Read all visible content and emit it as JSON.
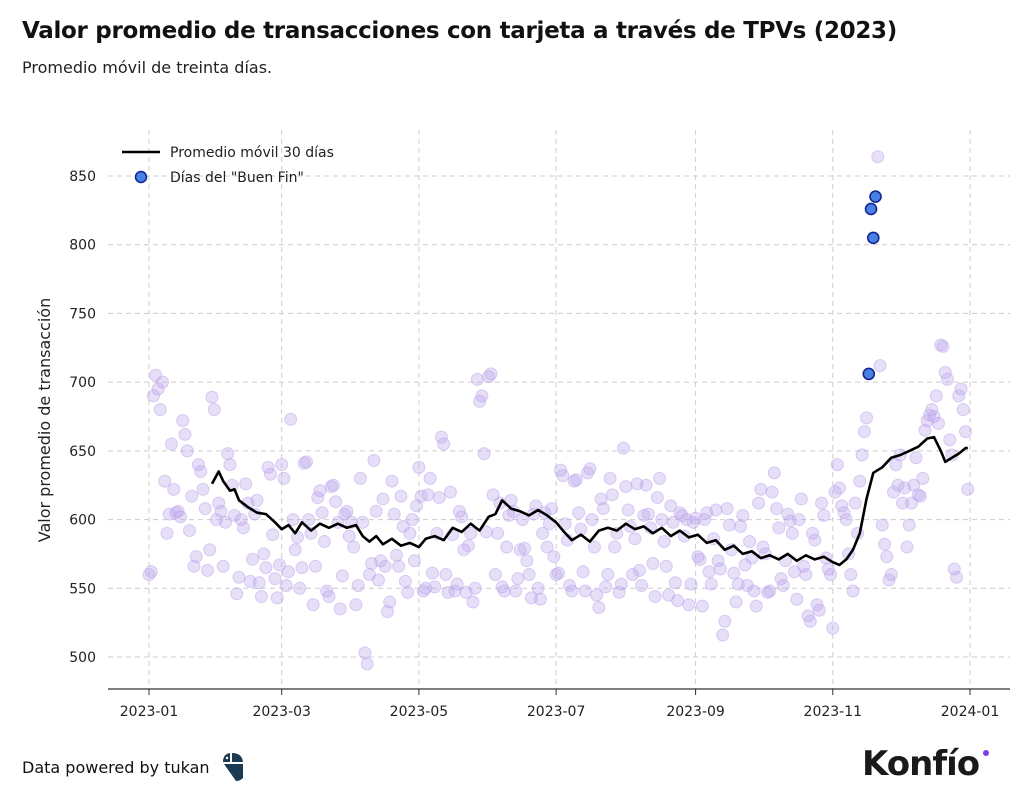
{
  "title": "Valor promedio de transacciones con tarjeta a través de TPVs (2023)",
  "subtitle": "Promedio móvil de treinta días.",
  "footer": {
    "credit": "Data powered by tukan",
    "logo_tukan": "tukan",
    "logo_konfio": "Konfío"
  },
  "colors": {
    "line": "#000000",
    "scatter": "#b9a3ec",
    "buen_fin_fill": "#4a7fe6",
    "buen_fin_edge": "#10238f",
    "konfio_dot": "#7b3fe4",
    "tukan": "#1c3a52"
  },
  "chart_data": {
    "type": "line+scatter",
    "ylabel": "Valor promedio de transacción",
    "xlabel": "",
    "ylim": [
      480,
      880
    ],
    "xlim": [
      "2022-12-10",
      "2024-01-20"
    ],
    "yticks": [
      500,
      550,
      600,
      650,
      700,
      750,
      800,
      850
    ],
    "xticks": [
      "2023-01",
      "2023-03",
      "2023-05",
      "2023-07",
      "2023-09",
      "2023-11",
      "2024-01"
    ],
    "grid": true,
    "legend": {
      "placement": "top-left",
      "entries": [
        "Promedio móvil 30 días",
        "Días del \"Buen Fin\""
      ]
    },
    "daily_values_by_month": {
      "2023-01": [
        560,
        562,
        690,
        705,
        695,
        680,
        700,
        628,
        590,
        604,
        655,
        622,
        605,
        606,
        602,
        672,
        662,
        650,
        592,
        617,
        566,
        573,
        640,
        635,
        622,
        608,
        563,
        578,
        689,
        680,
        600
      ],
      "2023-02": [
        612,
        606,
        566,
        598,
        648,
        640,
        625,
        603,
        546,
        558,
        600,
        594,
        626,
        612,
        555,
        571,
        604,
        614,
        554,
        544,
        575,
        565,
        638,
        633,
        589,
        557,
        543,
        567
      ],
      "2023-03": [
        640,
        630,
        552,
        562,
        673,
        600,
        578,
        587,
        550,
        565,
        641,
        642,
        600,
        590,
        538,
        566,
        616,
        621,
        605,
        584,
        548,
        544,
        624,
        625,
        613,
        598,
        535,
        559,
        604,
        606,
        588
      ],
      "2023-04": [
        598,
        580,
        538,
        552,
        630,
        598,
        503,
        495,
        560,
        568,
        643,
        606,
        556,
        570,
        615,
        566,
        533,
        540,
        628,
        604,
        574,
        566,
        617,
        595,
        555,
        547,
        590,
        600,
        570,
        610
      ],
      "2023-05": [
        638,
        617,
        548,
        550,
        618,
        630,
        561,
        551,
        590,
        616,
        660,
        655,
        560,
        547,
        620,
        589,
        548,
        553,
        606,
        602,
        578,
        547,
        581,
        590,
        540,
        550,
        702,
        686,
        690,
        648,
        591
      ],
      "2023-06": [
        704,
        706,
        618,
        560,
        590,
        612,
        551,
        548,
        580,
        603,
        614,
        606,
        548,
        557,
        578,
        600,
        579,
        570,
        560,
        543,
        604,
        610,
        550,
        542,
        590,
        605,
        580,
        597,
        608,
        573
      ],
      "2023-07": [
        560,
        561,
        636,
        632,
        597,
        585,
        552,
        548,
        628,
        629,
        605,
        593,
        562,
        548,
        634,
        637,
        600,
        580,
        545,
        536,
        615,
        608,
        551,
        560,
        630,
        618,
        580,
        590,
        547,
        553,
        652
      ],
      "2023-08": [
        624,
        607,
        595,
        560,
        586,
        626,
        563,
        552,
        603,
        625,
        604,
        594,
        568,
        544,
        616,
        630,
        600,
        584,
        566,
        545,
        610,
        598,
        554,
        541,
        605,
        603,
        588,
        600,
        538,
        553,
        598
      ],
      "2023-09": [
        601,
        573,
        571,
        537,
        600,
        605,
        562,
        553,
        586,
        607,
        570,
        564,
        516,
        526,
        608,
        596,
        578,
        561,
        540,
        553,
        595,
        603,
        567,
        552,
        584,
        572,
        548,
        537,
        612,
        622
      ],
      "2023-10": [
        580,
        575,
        547,
        548,
        620,
        634,
        608,
        594,
        557,
        552,
        570,
        604,
        599,
        590,
        562,
        542,
        600,
        615,
        566,
        560,
        530,
        526,
        590,
        585,
        538,
        534,
        612,
        603,
        572,
        564,
        560
      ],
      "2023-11": [
        521,
        620,
        640,
        623,
        610,
        605,
        600,
        575,
        560,
        548,
        612,
        590,
        628,
        647,
        664,
        674,
        706,
        826,
        805,
        835,
        864,
        712,
        596,
        582,
        573,
        556,
        560,
        620,
        640,
        625
      ],
      "2023-12": [
        647,
        612,
        623,
        580,
        596,
        612,
        625,
        645,
        618,
        617,
        630,
        665,
        672,
        676,
        680,
        675,
        690,
        670,
        727,
        726,
        707,
        702,
        658,
        647,
        564,
        558,
        690,
        695,
        680,
        664,
        622
      ]
    },
    "series": [
      {
        "name": "Promedio móvil 30 días",
        "type": "line",
        "points": [
          [
            "2023-01-29",
            626
          ],
          [
            "2023-02-01",
            635
          ],
          [
            "2023-02-03",
            628
          ],
          [
            "2023-02-06",
            621
          ],
          [
            "2023-02-08",
            622
          ],
          [
            "2023-02-10",
            614
          ],
          [
            "2023-02-14",
            609
          ],
          [
            "2023-02-18",
            605
          ],
          [
            "2023-02-22",
            604
          ],
          [
            "2023-02-26",
            598
          ],
          [
            "2023-03-01",
            593
          ],
          [
            "2023-03-04",
            596
          ],
          [
            "2023-03-07",
            590
          ],
          [
            "2023-03-10",
            598
          ],
          [
            "2023-03-14",
            592
          ],
          [
            "2023-03-18",
            597
          ],
          [
            "2023-03-22",
            594
          ],
          [
            "2023-03-26",
            597
          ],
          [
            "2023-03-30",
            594
          ],
          [
            "2023-04-03",
            596
          ],
          [
            "2023-04-06",
            588
          ],
          [
            "2023-04-09",
            584
          ],
          [
            "2023-04-12",
            588
          ],
          [
            "2023-04-15",
            582
          ],
          [
            "2023-04-19",
            586
          ],
          [
            "2023-04-23",
            581
          ],
          [
            "2023-04-27",
            583
          ],
          [
            "2023-05-01",
            580
          ],
          [
            "2023-05-04",
            586
          ],
          [
            "2023-05-08",
            588
          ],
          [
            "2023-05-12",
            585
          ],
          [
            "2023-05-16",
            594
          ],
          [
            "2023-05-20",
            591
          ],
          [
            "2023-05-24",
            597
          ],
          [
            "2023-05-28",
            592
          ],
          [
            "2023-06-01",
            602
          ],
          [
            "2023-06-04",
            604
          ],
          [
            "2023-06-07",
            614
          ],
          [
            "2023-06-11",
            608
          ],
          [
            "2023-06-15",
            606
          ],
          [
            "2023-06-19",
            603
          ],
          [
            "2023-06-23",
            607
          ],
          [
            "2023-06-27",
            603
          ],
          [
            "2023-07-01",
            598
          ],
          [
            "2023-07-04",
            592
          ],
          [
            "2023-07-08",
            585
          ],
          [
            "2023-07-12",
            589
          ],
          [
            "2023-07-16",
            584
          ],
          [
            "2023-07-20",
            592
          ],
          [
            "2023-07-24",
            594
          ],
          [
            "2023-07-28",
            592
          ],
          [
            "2023-08-01",
            597
          ],
          [
            "2023-08-05",
            593
          ],
          [
            "2023-08-09",
            595
          ],
          [
            "2023-08-13",
            590
          ],
          [
            "2023-08-17",
            594
          ],
          [
            "2023-08-21",
            588
          ],
          [
            "2023-08-25",
            592
          ],
          [
            "2023-08-29",
            587
          ],
          [
            "2023-09-02",
            589
          ],
          [
            "2023-09-06",
            583
          ],
          [
            "2023-09-10",
            585
          ],
          [
            "2023-09-14",
            578
          ],
          [
            "2023-09-18",
            581
          ],
          [
            "2023-09-22",
            575
          ],
          [
            "2023-09-26",
            577
          ],
          [
            "2023-09-30",
            572
          ],
          [
            "2023-10-04",
            574
          ],
          [
            "2023-10-08",
            571
          ],
          [
            "2023-10-12",
            575
          ],
          [
            "2023-10-16",
            570
          ],
          [
            "2023-10-20",
            574
          ],
          [
            "2023-10-24",
            571
          ],
          [
            "2023-10-28",
            573
          ],
          [
            "2023-11-01",
            569
          ],
          [
            "2023-11-04",
            567
          ],
          [
            "2023-11-07",
            571
          ],
          [
            "2023-11-10",
            578
          ],
          [
            "2023-11-13",
            590
          ],
          [
            "2023-11-16",
            615
          ],
          [
            "2023-11-19",
            634
          ],
          [
            "2023-11-23",
            638
          ],
          [
            "2023-11-27",
            645
          ],
          [
            "2023-12-01",
            647
          ],
          [
            "2023-12-05",
            650
          ],
          [
            "2023-12-09",
            653
          ],
          [
            "2023-12-13",
            659
          ],
          [
            "2023-12-16",
            660
          ],
          [
            "2023-12-19",
            650
          ],
          [
            "2023-12-21",
            642
          ],
          [
            "2023-12-24",
            645
          ],
          [
            "2023-12-27",
            648
          ],
          [
            "2023-12-30",
            652
          ],
          [
            "2023-12-31",
            652
          ]
        ]
      },
      {
        "name": "Días del \"Buen Fin\"",
        "type": "scatter",
        "points": [
          [
            "2023-11-17",
            706
          ],
          [
            "2023-11-18",
            826
          ],
          [
            "2023-11-19",
            805
          ],
          [
            "2023-11-20",
            835
          ]
        ]
      }
    ]
  }
}
